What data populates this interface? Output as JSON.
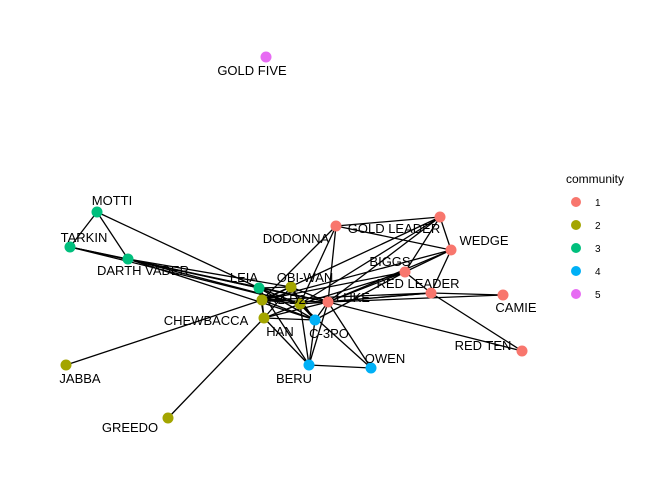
{
  "legend": {
    "title": "community",
    "items": [
      {
        "label": "1",
        "color": "#F8766D"
      },
      {
        "label": "2",
        "color": "#A3A500"
      },
      {
        "label": "3",
        "color": "#00BF7D"
      },
      {
        "label": "4",
        "color": "#00B0F6"
      },
      {
        "label": "5",
        "color": "#E76BF3"
      }
    ]
  },
  "nodes": [
    {
      "id": "GOLD FIVE",
      "label": "GOLD FIVE",
      "community": "5"
    },
    {
      "id": "MOTTI",
      "label": "MOTTI",
      "community": "3"
    },
    {
      "id": "TARKIN",
      "label": "TARKIN",
      "community": "3"
    },
    {
      "id": "DARTH VADER",
      "label": "DARTH VADER",
      "community": "3"
    },
    {
      "id": "LEIA",
      "label": "LEIA",
      "community": "3"
    },
    {
      "id": "OBI-WAN",
      "label": "OBI-WAN",
      "community": "2"
    },
    {
      "id": "R2-D2",
      "label": "R2-D2",
      "community": "2"
    },
    {
      "id": "CHEWBACCA",
      "label": "CHEWBACCA",
      "community": "2"
    },
    {
      "id": "HAN",
      "label": "HAN",
      "community": "2"
    },
    {
      "id": "JABBA",
      "label": "JABBA",
      "community": "2"
    },
    {
      "id": "GREEDO",
      "label": "GREEDO",
      "community": "2"
    },
    {
      "id": "LUKE",
      "label": "LUKE",
      "community": "1"
    },
    {
      "id": "DODONNA",
      "label": "DODONNA",
      "community": "1"
    },
    {
      "id": "GOLD LEADER",
      "label": "GOLD LEADER",
      "community": "1"
    },
    {
      "id": "WEDGE",
      "label": "WEDGE",
      "community": "1"
    },
    {
      "id": "BIGGS",
      "label": "BIGGS",
      "community": "1"
    },
    {
      "id": "RED LEADER",
      "label": "RED LEADER",
      "community": "1"
    },
    {
      "id": "CAMIE",
      "label": "CAMIE",
      "community": "1"
    },
    {
      "id": "RED TEN",
      "label": "RED TEN",
      "community": "1"
    },
    {
      "id": "C-3PO",
      "label": "C-3PO",
      "community": "4"
    },
    {
      "id": "BERU",
      "label": "BERU",
      "community": "4"
    },
    {
      "id": "OWEN",
      "label": "OWEN",
      "community": "4"
    }
  ],
  "edges": [
    [
      "MOTTI",
      "TARKIN"
    ],
    [
      "MOTTI",
      "DARTH VADER"
    ],
    [
      "MOTTI",
      "LEIA"
    ],
    [
      "TARKIN",
      "DARTH VADER"
    ],
    [
      "TARKIN",
      "LEIA"
    ],
    [
      "TARKIN",
      "R2-D2"
    ],
    [
      "TARKIN",
      "LUKE"
    ],
    [
      "DARTH VADER",
      "LEIA"
    ],
    [
      "DARTH VADER",
      "OBI-WAN"
    ],
    [
      "DARTH VADER",
      "R2-D2"
    ],
    [
      "DARTH VADER",
      "C-3PO"
    ],
    [
      "LEIA",
      "OBI-WAN"
    ],
    [
      "LEIA",
      "R2-D2"
    ],
    [
      "LEIA",
      "HAN"
    ],
    [
      "LEIA",
      "CHEWBACCA"
    ],
    [
      "LEIA",
      "LUKE"
    ],
    [
      "LEIA",
      "C-3PO"
    ],
    [
      "LEIA",
      "BERU"
    ],
    [
      "OBI-WAN",
      "R2-D2"
    ],
    [
      "OBI-WAN",
      "CHEWBACCA"
    ],
    [
      "OBI-WAN",
      "LUKE"
    ],
    [
      "OBI-WAN",
      "C-3PO"
    ],
    [
      "OBI-WAN",
      "HAN"
    ],
    [
      "R2-D2",
      "CHEWBACCA"
    ],
    [
      "R2-D2",
      "LUKE"
    ],
    [
      "R2-D2",
      "C-3PO"
    ],
    [
      "R2-D2",
      "HAN"
    ],
    [
      "R2-D2",
      "BIGGS"
    ],
    [
      "R2-D2",
      "RED LEADER"
    ],
    [
      "R2-D2",
      "GOLD LEADER"
    ],
    [
      "R2-D2",
      "DODONNA"
    ],
    [
      "R2-D2",
      "OWEN"
    ],
    [
      "R2-D2",
      "BERU"
    ],
    [
      "CHEWBACCA",
      "HAN"
    ],
    [
      "CHEWBACCA",
      "LUKE"
    ],
    [
      "CHEWBACCA",
      "C-3PO"
    ],
    [
      "CHEWBACCA",
      "GREEDO"
    ],
    [
      "CHEWBACCA",
      "BERU"
    ],
    [
      "HAN",
      "JABBA"
    ],
    [
      "HAN",
      "LUKE"
    ],
    [
      "HAN",
      "C-3PO"
    ],
    [
      "HAN",
      "WEDGE"
    ],
    [
      "HAN",
      "BIGGS"
    ],
    [
      "HAN",
      "RED LEADER"
    ],
    [
      "HAN",
      "DODONNA"
    ],
    [
      "HAN",
      "GOLD LEADER"
    ],
    [
      "LUKE",
      "DODONNA"
    ],
    [
      "LUKE",
      "GOLD LEADER"
    ],
    [
      "LUKE",
      "WEDGE"
    ],
    [
      "LUKE",
      "BIGGS"
    ],
    [
      "LUKE",
      "RED LEADER"
    ],
    [
      "LUKE",
      "CAMIE"
    ],
    [
      "LUKE",
      "RED TEN"
    ],
    [
      "LUKE",
      "C-3PO"
    ],
    [
      "LUKE",
      "BERU"
    ],
    [
      "LUKE",
      "OWEN"
    ],
    [
      "DODONNA",
      "GOLD LEADER"
    ],
    [
      "DODONNA",
      "WEDGE"
    ],
    [
      "GOLD LEADER",
      "WEDGE"
    ],
    [
      "GOLD LEADER",
      "BIGGS"
    ],
    [
      "WEDGE",
      "BIGGS"
    ],
    [
      "WEDGE",
      "RED LEADER"
    ],
    [
      "BIGGS",
      "RED LEADER"
    ],
    [
      "BIGGS",
      "C-3PO"
    ],
    [
      "RED LEADER",
      "CAMIE"
    ],
    [
      "RED LEADER",
      "RED TEN"
    ],
    [
      "C-3PO",
      "BERU"
    ],
    [
      "BERU",
      "OWEN"
    ]
  ]
}
